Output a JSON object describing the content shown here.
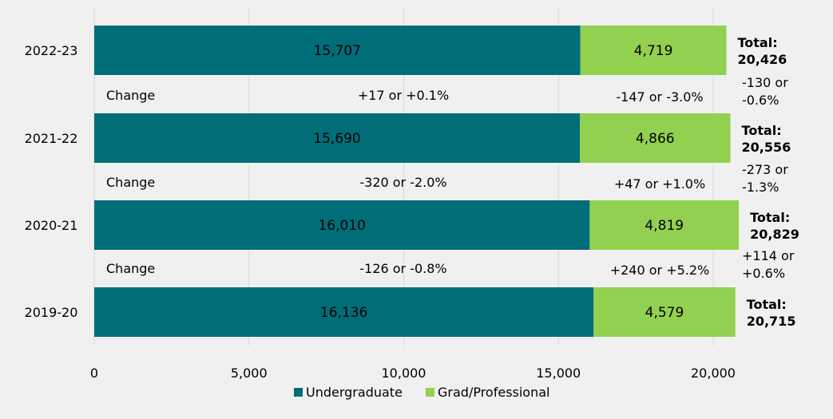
{
  "chart_data": {
    "type": "bar",
    "orientation": "horizontal",
    "stacked": true,
    "categories": [
      "2022-23",
      "2021-22",
      "2020-21",
      "2019-20"
    ],
    "series": [
      {
        "name": "Undergraduate",
        "color": "#006e78",
        "values": [
          15707,
          15690,
          16010,
          16136
        ],
        "labels": [
          "15,707",
          "15,690",
          "16,010",
          "16,136"
        ]
      },
      {
        "name": "Grad/Professional",
        "color": "#92d050",
        "values": [
          4719,
          4866,
          4819,
          4579
        ],
        "labels": [
          "4,719",
          "4,866",
          "4,819",
          "4,579"
        ]
      }
    ],
    "totals": [
      {
        "label": "Total:",
        "value": "20,426"
      },
      {
        "label": "Total:",
        "value": "20,556"
      },
      {
        "label": "Total:",
        "value": "20,829"
      },
      {
        "label": "Total:",
        "value": "20,715"
      }
    ],
    "changes": [
      {
        "label": "Change",
        "undergrad": "+17 or  +0.1%",
        "grad": "-147 or  -3.0%",
        "total_line1": "-130 or",
        "total_line2": "-0.6%"
      },
      {
        "label": "Change",
        "undergrad": "-320 or -2.0%",
        "grad": "+47 or  +1.0%",
        "total_line1": "-273 or",
        "total_line2": "-1.3%"
      },
      {
        "label": "Change",
        "undergrad": "-126 or -0.8%",
        "grad": "+240 or +5.2%",
        "total_line1": "+114 or",
        "total_line2": "+0.6%"
      }
    ],
    "x_ticks": [
      0,
      5000,
      10000,
      15000,
      20000
    ],
    "x_tick_labels": [
      "0",
      "5,000",
      "10,000",
      "15,000",
      "20,000"
    ],
    "xlim": [
      0,
      20000
    ],
    "grid": true,
    "legend_position": "bottom",
    "label_colors": {
      "undergrad_text": "#ffffff",
      "grad_text": "#000000",
      "gridline": "#d9d9d9"
    }
  }
}
